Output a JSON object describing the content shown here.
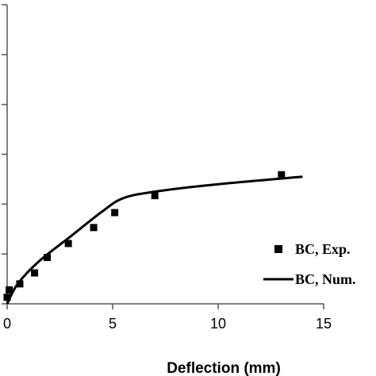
{
  "chart_data": {
    "type": "scatter",
    "title": "",
    "xlabel": "Deflection (mm)",
    "ylabel": "",
    "xlim": [
      0,
      15
    ],
    "ylim": [
      0,
      6
    ],
    "x_ticks": [
      0,
      5,
      10,
      15
    ],
    "y_tick_count": 7,
    "grid": false,
    "legend": "bottom-right",
    "series": [
      {
        "name": "BC, Exp.",
        "kind": "scatter",
        "marker": "square",
        "color": "#000000",
        "points": [
          [
            0.0,
            0.13
          ],
          [
            0.1,
            0.28
          ],
          [
            0.6,
            0.4
          ],
          [
            1.3,
            0.62
          ],
          [
            1.9,
            0.93
          ],
          [
            2.9,
            1.21
          ],
          [
            4.1,
            1.53
          ],
          [
            5.1,
            1.83
          ],
          [
            7.0,
            2.17
          ],
          [
            13.0,
            2.59
          ]
        ]
      },
      {
        "name": "BC, Num.",
        "kind": "line",
        "color": "#000000",
        "points": [
          [
            0.0,
            0.0
          ],
          [
            0.5,
            0.4
          ],
          [
            1.5,
            0.85
          ],
          [
            3.0,
            1.35
          ],
          [
            4.5,
            1.85
          ],
          [
            5.5,
            2.12
          ],
          [
            7.0,
            2.25
          ],
          [
            10.0,
            2.4
          ],
          [
            14.0,
            2.55
          ]
        ]
      }
    ]
  }
}
